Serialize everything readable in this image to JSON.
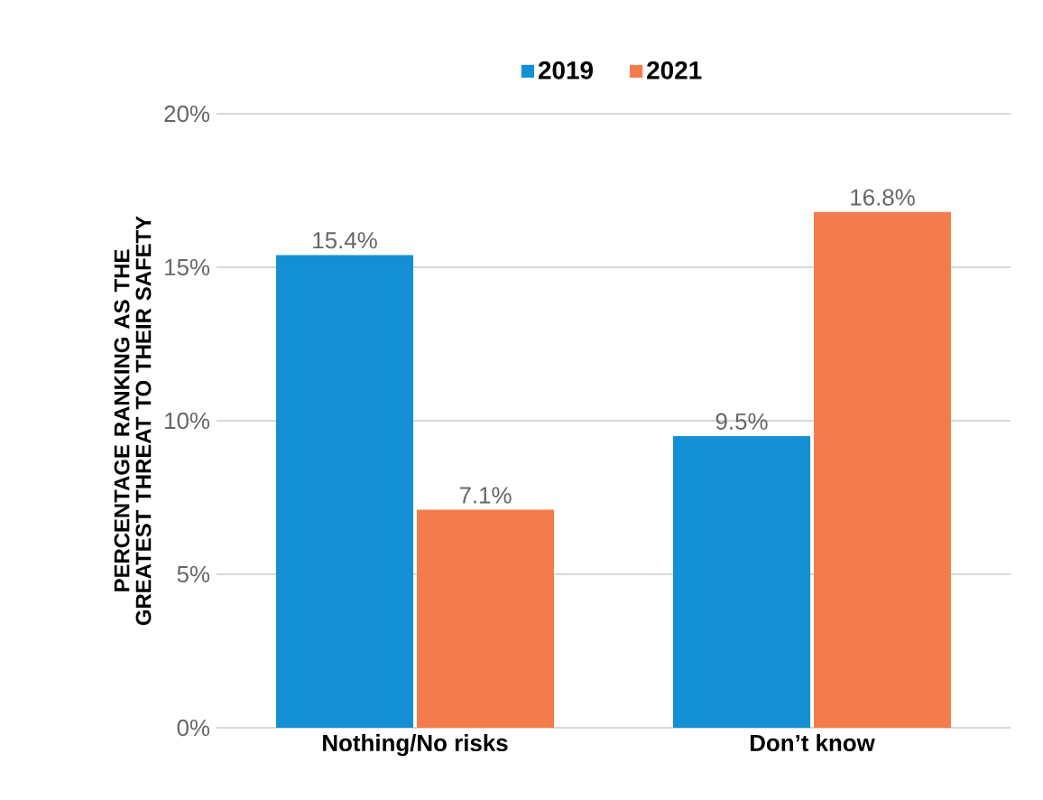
{
  "chart_data": {
    "type": "bar",
    "ylabel": "PERCENTAGE RANKING AS THE GREATEST THREAT TO THEIR SAFETY",
    "categories": [
      "Nothing/No risks",
      "Don’t know"
    ],
    "series": [
      {
        "name": "2019",
        "color": "#1390d4",
        "values": [
          15.4,
          9.5
        ],
        "value_labels": [
          "15.4%",
          "9.5%"
        ]
      },
      {
        "name": "2021",
        "color": "#f47c4c",
        "values": [
          7.1,
          16.8
        ],
        "value_labels": [
          "7.1%",
          "16.8%"
        ]
      }
    ],
    "ylim": [
      0,
      20
    ],
    "yticks": [
      {
        "value": 0,
        "label": "0%"
      },
      {
        "value": 5,
        "label": "5%"
      },
      {
        "value": 10,
        "label": "10%"
      },
      {
        "value": 15,
        "label": "15%"
      },
      {
        "value": 20,
        "label": "20%"
      }
    ],
    "grid": "y",
    "legend": "top"
  }
}
